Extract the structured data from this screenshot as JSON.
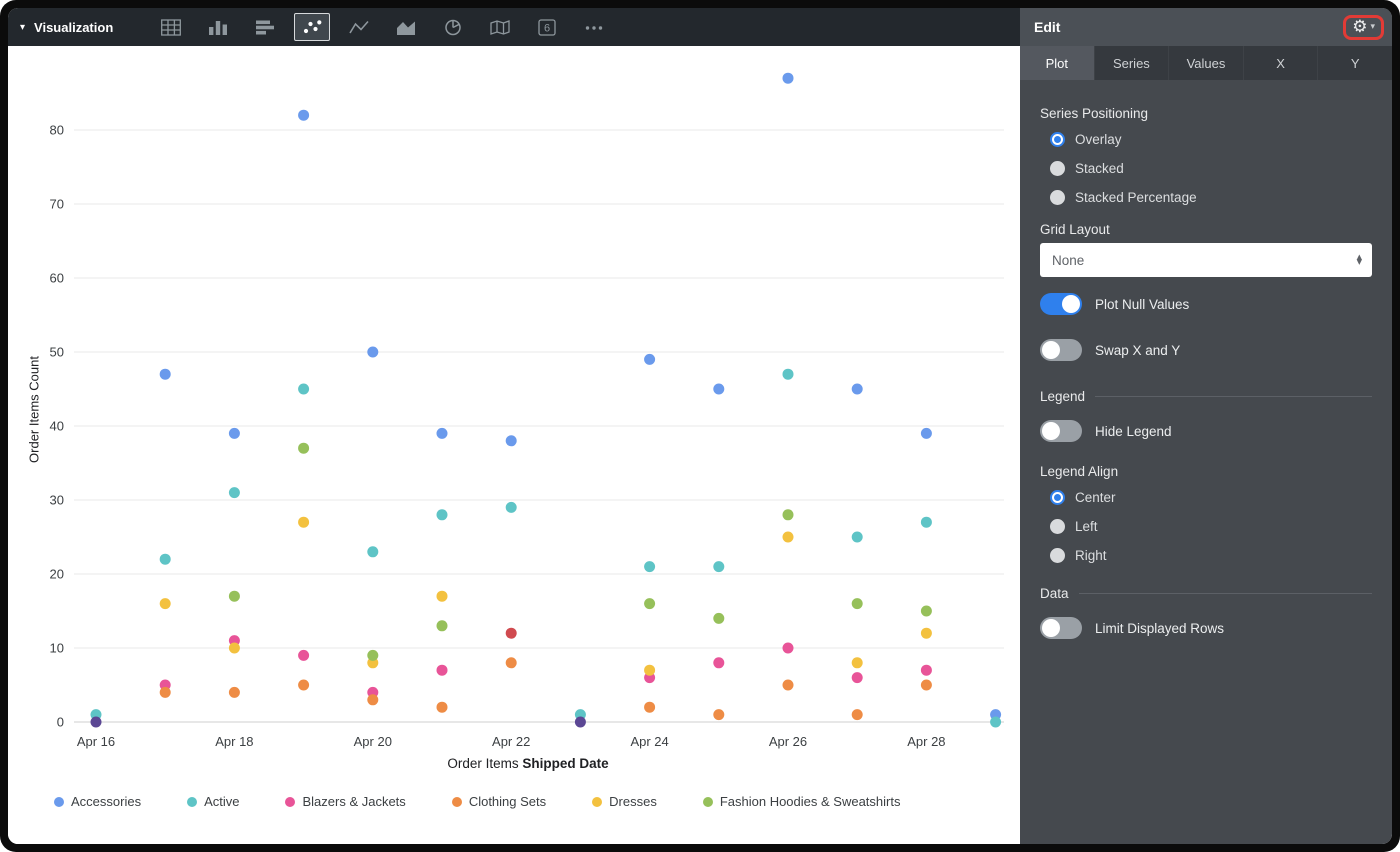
{
  "toolbar": {
    "title": "Visualization",
    "icons": [
      {
        "name": "table",
        "selected": false
      },
      {
        "name": "column",
        "selected": false
      },
      {
        "name": "bar",
        "selected": false
      },
      {
        "name": "scatter",
        "selected": true
      },
      {
        "name": "line",
        "selected": false
      },
      {
        "name": "area",
        "selected": false
      },
      {
        "name": "pie",
        "selected": false
      },
      {
        "name": "map",
        "selected": false
      },
      {
        "name": "single-value",
        "selected": false,
        "label": "6"
      },
      {
        "name": "more",
        "selected": false
      }
    ]
  },
  "panel": {
    "title": "Edit",
    "tabs": [
      {
        "label": "Plot",
        "active": true
      },
      {
        "label": "Series",
        "active": false
      },
      {
        "label": "Values",
        "active": false
      },
      {
        "label": "X",
        "active": false
      },
      {
        "label": "Y",
        "active": false
      }
    ],
    "series_positioning": {
      "label": "Series Positioning",
      "options": [
        {
          "label": "Overlay",
          "selected": true
        },
        {
          "label": "Stacked",
          "selected": false
        },
        {
          "label": "Stacked Percentage",
          "selected": false
        }
      ]
    },
    "grid_layout": {
      "label": "Grid Layout",
      "value": "None"
    },
    "plot_null_values": {
      "label": "Plot Null Values",
      "on": true
    },
    "swap_x_y": {
      "label": "Swap X and Y",
      "on": false
    },
    "legend_section": {
      "label": "Legend",
      "hide_legend": {
        "label": "Hide Legend",
        "on": false
      },
      "legend_align": {
        "label": "Legend Align",
        "options": [
          {
            "label": "Center",
            "selected": true
          },
          {
            "label": "Left",
            "selected": false
          },
          {
            "label": "Right",
            "selected": false
          }
        ]
      }
    },
    "data_section": {
      "label": "Data",
      "limit_rows": {
        "label": "Limit Displayed Rows",
        "on": false
      }
    },
    "colors": {
      "accent_blue": "#2f80ed",
      "toggle_off": "#9aa0a6",
      "highlight_red": "#e23b36"
    }
  },
  "chart_data": {
    "type": "scatter",
    "x": [
      "Apr 16",
      "Apr 17",
      "Apr 18",
      "Apr 19",
      "Apr 20",
      "Apr 21",
      "Apr 22",
      "Apr 23",
      "Apr 24",
      "Apr 25",
      "Apr 26",
      "Apr 27",
      "Apr 28",
      "Apr 29"
    ],
    "x_tick_indices": [
      0,
      2,
      4,
      6,
      8,
      10,
      12
    ],
    "x_tick_labels": [
      "Apr 16",
      "Apr 18",
      "Apr 20",
      "Apr 22",
      "Apr 24",
      "Apr 26",
      "Apr 28"
    ],
    "xlabel_regular": "Order Items ",
    "xlabel_bold": "Shipped Date",
    "ylabel": "Order Items Count",
    "ylim": [
      0,
      90
    ],
    "yticks": [
      0,
      10,
      20,
      30,
      40,
      50,
      60,
      70,
      80
    ],
    "grid": "horizontal",
    "legend_position": "bottom",
    "series": [
      {
        "name": "Accessories",
        "color": "#6a9aec",
        "in_legend": true,
        "values": [
          null,
          47,
          39,
          82,
          50,
          39,
          38,
          null,
          49,
          45,
          87,
          45,
          39,
          1
        ]
      },
      {
        "name": "Active",
        "color": "#5ec4c6",
        "in_legend": true,
        "values": [
          1,
          22,
          31,
          45,
          23,
          28,
          29,
          1,
          21,
          21,
          47,
          25,
          27,
          0
        ]
      },
      {
        "name": "Blazers & Jackets",
        "color": "#e85498",
        "in_legend": true,
        "values": [
          null,
          5,
          11,
          9,
          4,
          7,
          null,
          null,
          6,
          8,
          10,
          6,
          7,
          null
        ]
      },
      {
        "name": "Clothing Sets",
        "color": "#ee8c45",
        "in_legend": true,
        "values": [
          null,
          4,
          4,
          5,
          3,
          2,
          8,
          null,
          2,
          1,
          5,
          1,
          5,
          null
        ]
      },
      {
        "name": "Dresses",
        "color": "#f3c13f",
        "in_legend": true,
        "values": [
          null,
          16,
          10,
          27,
          8,
          17,
          null,
          null,
          7,
          null,
          25,
          8,
          12,
          null
        ]
      },
      {
        "name": "Fashion Hoodies & Sweatshirts",
        "color": "#96c05a",
        "in_legend": true,
        "values": [
          null,
          null,
          17,
          37,
          9,
          13,
          null,
          null,
          16,
          14,
          28,
          16,
          15,
          null
        ]
      },
      {
        "name": "",
        "color": "#d04a4f",
        "in_legend": false,
        "values": [
          null,
          null,
          null,
          null,
          null,
          null,
          12,
          null,
          null,
          null,
          null,
          null,
          null,
          null
        ]
      },
      {
        "name": "",
        "color": "#5b4794",
        "in_legend": false,
        "values": [
          0,
          null,
          null,
          null,
          null,
          null,
          null,
          0,
          null,
          null,
          null,
          null,
          null,
          null
        ]
      }
    ]
  }
}
